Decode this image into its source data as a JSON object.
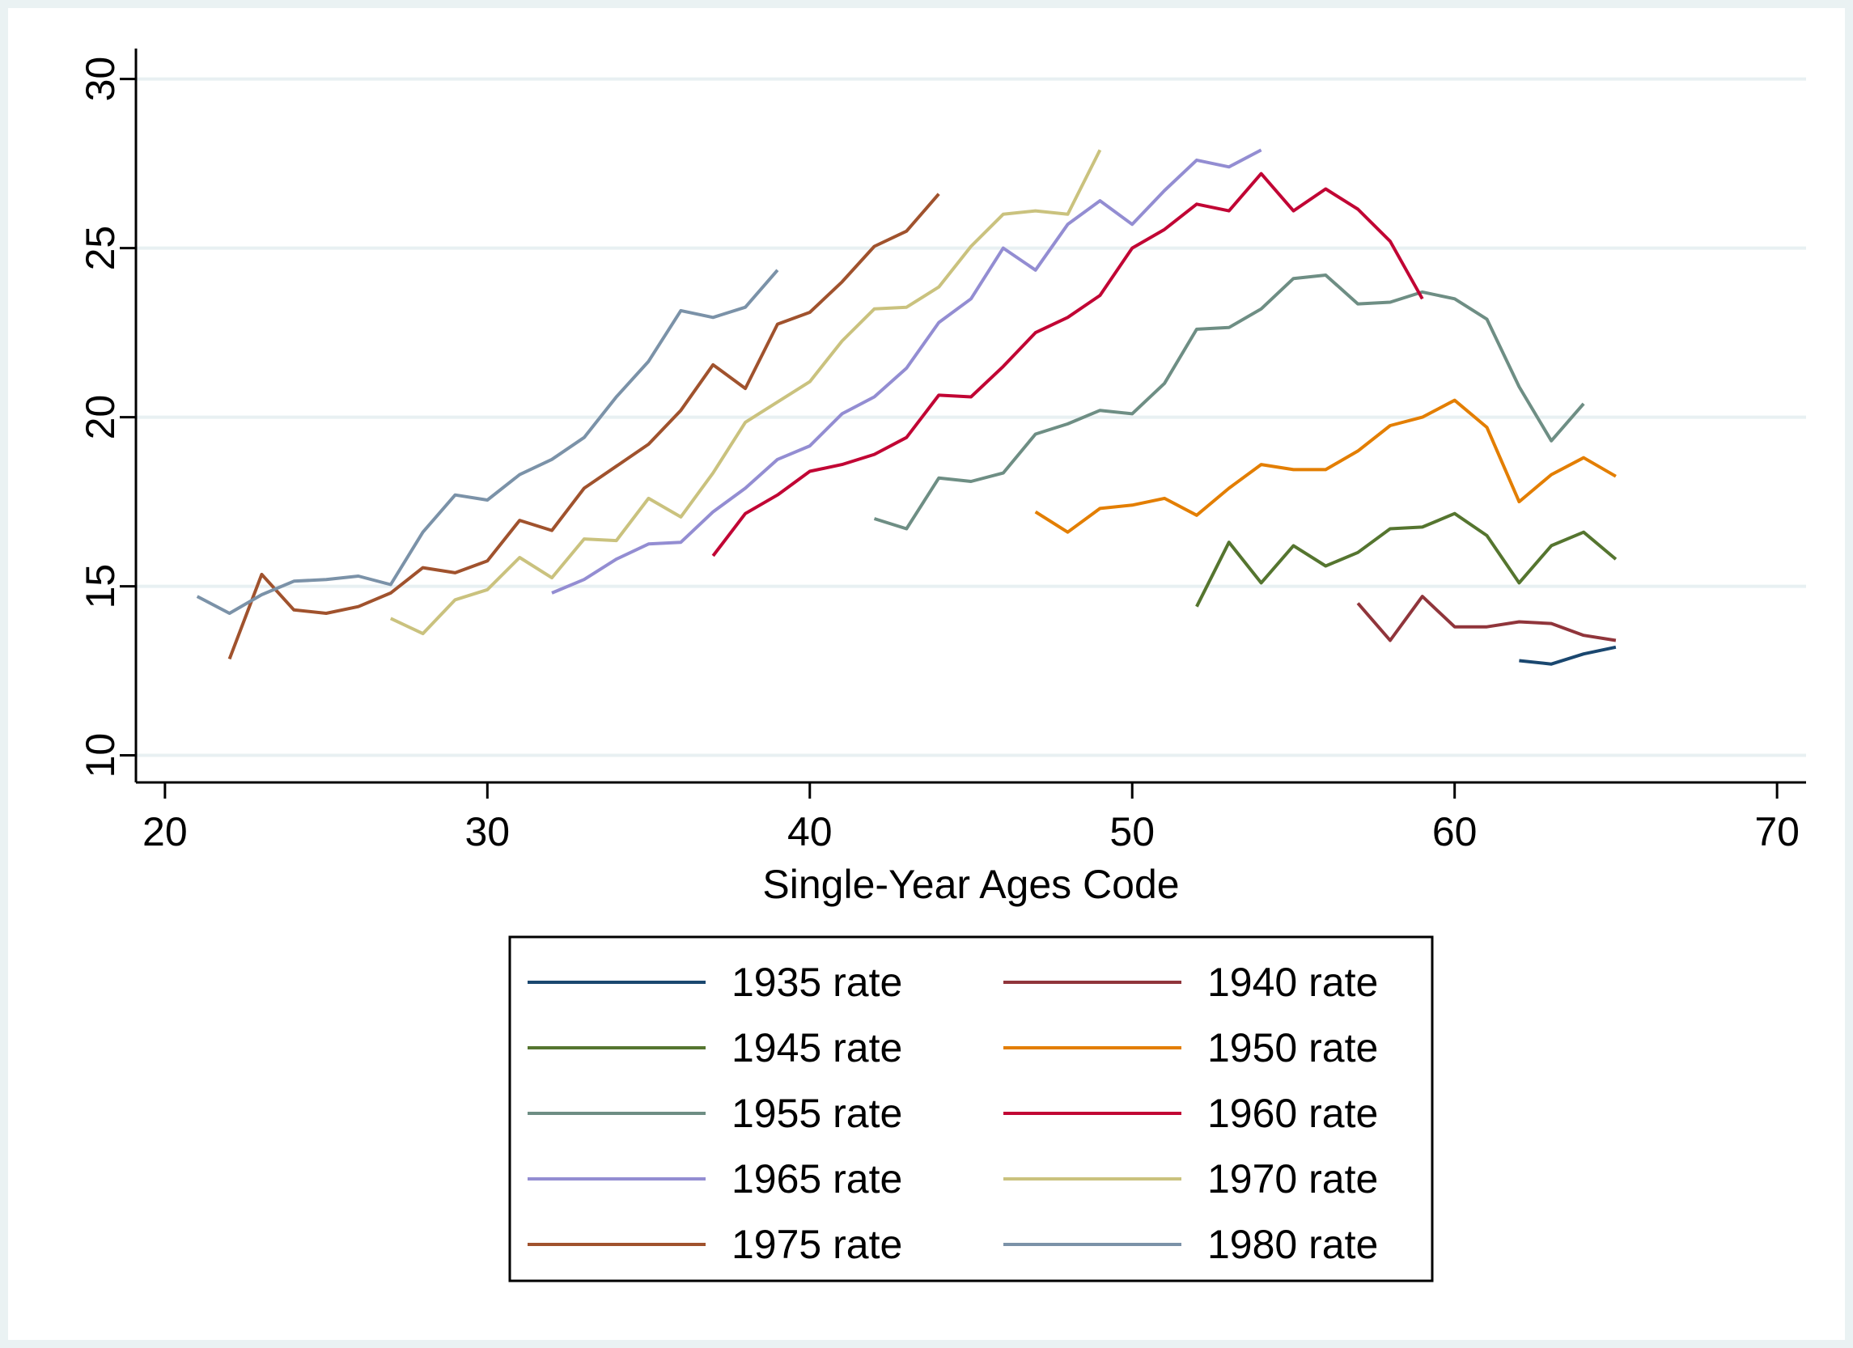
{
  "chart_data": {
    "type": "line",
    "title": "",
    "xlabel": "Single-Year Ages Code",
    "ylabel": "",
    "xlim": [
      19.1,
      70.9
    ],
    "ylim": [
      9.2,
      30.9
    ],
    "x_ticks": [
      20,
      30,
      40,
      50,
      60,
      70
    ],
    "y_ticks": [
      10,
      15,
      20,
      25,
      30
    ],
    "grid": true,
    "legend_position": "bottom",
    "legend_columns": 2,
    "series": [
      {
        "name": "1935 rate",
        "color": "#1a476f",
        "x": [
          62,
          63,
          64,
          65
        ],
        "y": [
          12.8,
          12.7,
          13.0,
          13.2
        ]
      },
      {
        "name": "1940 rate",
        "color": "#90353b",
        "x": [
          57,
          58,
          59,
          60,
          61,
          62,
          63,
          64,
          65
        ],
        "y": [
          14.5,
          13.4,
          14.7,
          13.8,
          13.8,
          13.95,
          13.9,
          13.55,
          13.4
        ]
      },
      {
        "name": "1945 rate",
        "color": "#55752f",
        "x": [
          52,
          53,
          54,
          55,
          56,
          57,
          58,
          59,
          60,
          61,
          62,
          63,
          64,
          65
        ],
        "y": [
          14.4,
          16.3,
          15.1,
          16.2,
          15.6,
          16.0,
          16.7,
          16.75,
          17.15,
          16.5,
          15.1,
          16.2,
          16.6,
          15.8
        ]
      },
      {
        "name": "1950 rate",
        "color": "#e37e00",
        "x": [
          47,
          48,
          49,
          50,
          51,
          52,
          53,
          54,
          55,
          56,
          57,
          58,
          59,
          60,
          61,
          62,
          63,
          64,
          65
        ],
        "y": [
          17.2,
          16.6,
          17.3,
          17.4,
          17.6,
          17.1,
          17.9,
          18.6,
          18.45,
          18.45,
          19.0,
          19.75,
          20.0,
          20.5,
          19.7,
          17.5,
          18.3,
          18.8,
          18.25
        ]
      },
      {
        "name": "1955 rate",
        "color": "#6e8e84",
        "x": [
          42,
          43,
          44,
          45,
          46,
          47,
          48,
          49,
          50,
          51,
          52,
          53,
          54,
          55,
          56,
          57,
          58,
          59,
          60,
          61,
          62,
          63,
          64
        ],
        "y": [
          17.0,
          16.7,
          18.2,
          18.1,
          18.35,
          19.5,
          19.8,
          20.2,
          20.1,
          21.0,
          22.6,
          22.65,
          23.2,
          24.1,
          24.2,
          23.35,
          23.4,
          23.7,
          23.5,
          22.9,
          20.9,
          19.3,
          20.4
        ]
      },
      {
        "name": "1960 rate",
        "color": "#c10534",
        "x": [
          37,
          38,
          39,
          40,
          41,
          42,
          43,
          44,
          45,
          46,
          47,
          48,
          49,
          50,
          51,
          52,
          53,
          54,
          55,
          56,
          57,
          58,
          59
        ],
        "y": [
          15.9,
          17.15,
          17.7,
          18.4,
          18.6,
          18.9,
          19.4,
          20.65,
          20.6,
          21.5,
          22.5,
          22.95,
          23.6,
          25.0,
          25.55,
          26.3,
          26.1,
          27.2,
          26.1,
          26.75,
          26.15,
          25.2,
          23.5
        ]
      },
      {
        "name": "1965 rate",
        "color": "#938dd2",
        "x": [
          32,
          33,
          34,
          35,
          36,
          37,
          38,
          39,
          40,
          41,
          42,
          43,
          44,
          45,
          46,
          47,
          48,
          49,
          50,
          51,
          52,
          53,
          54
        ],
        "y": [
          14.8,
          15.2,
          15.8,
          16.25,
          16.3,
          17.2,
          17.9,
          18.75,
          19.15,
          20.1,
          20.6,
          21.45,
          22.8,
          23.5,
          25.0,
          24.35,
          25.7,
          26.4,
          25.7,
          26.7,
          27.6,
          27.4,
          27.9
        ]
      },
      {
        "name": "1970 rate",
        "color": "#cac27e",
        "x": [
          27,
          28,
          29,
          30,
          31,
          32,
          33,
          34,
          35,
          36,
          37,
          38,
          39,
          40,
          41,
          42,
          43,
          44,
          45,
          46,
          47,
          48,
          49
        ],
        "y": [
          14.05,
          13.6,
          14.6,
          14.9,
          15.85,
          15.25,
          16.4,
          16.35,
          17.6,
          17.05,
          18.35,
          19.85,
          20.45,
          21.05,
          22.25,
          23.2,
          23.25,
          23.85,
          25.05,
          26.0,
          26.1,
          26.0,
          27.9
        ]
      },
      {
        "name": "1975 rate",
        "color": "#a0522d",
        "x": [
          22,
          23,
          24,
          25,
          26,
          27,
          28,
          29,
          30,
          31,
          32,
          33,
          34,
          35,
          36,
          37,
          38,
          39,
          40,
          41,
          42,
          43,
          44
        ],
        "y": [
          12.85,
          15.35,
          14.3,
          14.2,
          14.4,
          14.8,
          15.55,
          15.4,
          15.75,
          16.95,
          16.65,
          17.9,
          18.55,
          19.2,
          20.2,
          21.55,
          20.85,
          22.75,
          23.1,
          24.0,
          25.05,
          25.5,
          26.6
        ]
      },
      {
        "name": "1980 rate",
        "color": "#7b92a8",
        "x": [
          21,
          22,
          23,
          24,
          25,
          26,
          27,
          28,
          29,
          30,
          31,
          32,
          33,
          34,
          35,
          36,
          37,
          38,
          39
        ],
        "y": [
          14.7,
          14.2,
          14.75,
          15.15,
          15.2,
          15.3,
          15.05,
          16.6,
          17.7,
          17.55,
          18.3,
          18.75,
          19.4,
          20.6,
          21.65,
          23.15,
          22.95,
          23.25,
          24.35
        ]
      }
    ]
  }
}
